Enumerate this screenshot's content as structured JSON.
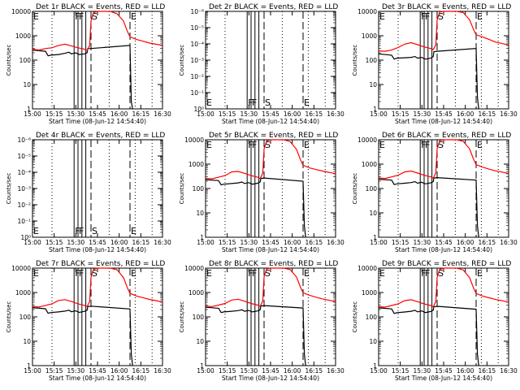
{
  "common": {
    "xlabel": "Start Time (08-Jun-12 14:54:40)",
    "ylabel": "Counts/sec",
    "x_ticks": [
      "15:00",
      "15:15",
      "15:30",
      "15:45",
      "16:00",
      "16:15",
      "16:30"
    ],
    "x_range_min": [
      0,
      100
    ],
    "events_color": "#000000",
    "lld_color": "#ff0000",
    "vertical_markers": [
      {
        "label": "E",
        "t": 0,
        "style": "dotted"
      },
      {
        "label": "",
        "t": 15,
        "style": "dotted"
      },
      {
        "label": "F",
        "t": 32,
        "style": "solid"
      },
      {
        "label": "F",
        "t": 35,
        "style": "solid"
      },
      {
        "label": "",
        "t": 38,
        "style": "solid"
      },
      {
        "label": "",
        "t": 41,
        "style": "solid"
      },
      {
        "label": "S",
        "t": 45,
        "style": "dashed"
      },
      {
        "label": "",
        "t": 59,
        "style": "dotted"
      },
      {
        "label": "E",
        "t": 75,
        "style": "dashed"
      },
      {
        "label": "",
        "t": 79,
        "style": "dotted"
      },
      {
        "label": "",
        "t": 92,
        "style": "dotted"
      }
    ]
  },
  "chart_data": [
    {
      "type": "line",
      "title": "Det 1r BLACK = Events, RED = LLD",
      "empty": false,
      "y_ticks": [
        "10000",
        "1000",
        "100",
        "10",
        "1"
      ],
      "ylim": [
        1,
        10000
      ],
      "series": [
        {
          "name": "Events",
          "x": [
            0,
            10,
            12,
            14,
            20,
            25,
            28,
            30,
            33,
            36,
            40,
            42,
            42.5,
            45,
            75,
            76,
            77
          ],
          "y": [
            260,
            230,
            150,
            160,
            170,
            190,
            210,
            180,
            200,
            170,
            180,
            200,
            300,
            300,
            400,
            2,
            1
          ]
        },
        {
          "name": "LLD",
          "x": [
            0,
            5,
            10,
            15,
            20,
            25,
            30,
            35,
            40,
            42,
            44,
            45,
            47,
            50,
            55,
            60,
            65,
            70,
            73,
            75,
            80,
            85,
            90,
            95,
            100
          ],
          "y": [
            280,
            260,
            300,
            320,
            400,
            450,
            380,
            320,
            280,
            250,
            400,
            4000,
            9000,
            10000,
            10000,
            10000,
            8000,
            4000,
            1500,
            900,
            700,
            600,
            500,
            450,
            400
          ]
        }
      ]
    },
    {
      "type": "line",
      "title": "Det 2r BLACK = Events, RED = LLD",
      "empty": true,
      "y_ticks": [
        "10⁻⁶",
        "10⁻⁵",
        "10⁻⁴",
        "10⁻³",
        "10⁻²",
        "10⁻¹",
        "10⁰"
      ],
      "series": []
    },
    {
      "type": "line",
      "title": "Det 3r BLACK = Events, RED = LLD",
      "empty": false,
      "y_ticks": [
        "10000",
        "1000",
        "100",
        "10",
        "1"
      ],
      "ylim": [
        1,
        10000
      ],
      "series": [
        {
          "name": "Events",
          "x": [
            0,
            10,
            12,
            14,
            20,
            25,
            28,
            30,
            33,
            36,
            40,
            42,
            42.5,
            45,
            75,
            76,
            77
          ],
          "y": [
            180,
            160,
            110,
            120,
            125,
            130,
            140,
            120,
            130,
            110,
            120,
            140,
            220,
            230,
            300,
            3,
            1
          ]
        },
        {
          "name": "LLD",
          "x": [
            0,
            5,
            10,
            15,
            20,
            25,
            30,
            35,
            40,
            42,
            44,
            45,
            47,
            50,
            55,
            60,
            65,
            70,
            73,
            75,
            80,
            85,
            90,
            95,
            100
          ],
          "y": [
            240,
            230,
            260,
            330,
            450,
            520,
            430,
            350,
            300,
            270,
            420,
            4500,
            9500,
            10000,
            10000,
            10000,
            9000,
            4500,
            1800,
            1100,
            900,
            700,
            550,
            480,
            420
          ]
        }
      ]
    },
    {
      "type": "line",
      "title": "Det 4r BLACK = Events, RED = LLD",
      "empty": true,
      "y_ticks": [
        "10⁻⁶",
        "10⁻⁵",
        "10⁻⁴",
        "10⁻³",
        "10⁻²",
        "10⁻¹",
        "10⁰"
      ],
      "series": []
    },
    {
      "type": "line",
      "title": "Det 5r BLACK = Events, RED = LLD",
      "empty": false,
      "y_ticks": [
        "10000",
        "1000",
        "100",
        "10",
        "1"
      ],
      "ylim": [
        1,
        10000
      ],
      "series": [
        {
          "name": "Events",
          "x": [
            0,
            10,
            12,
            14,
            20,
            25,
            28,
            30,
            33,
            36,
            40,
            42,
            42.5,
            45,
            75,
            76,
            77
          ],
          "y": [
            230,
            210,
            140,
            150,
            160,
            170,
            185,
            160,
            175,
            150,
            165,
            185,
            260,
            270,
            200,
            3,
            1
          ]
        },
        {
          "name": "LLD",
          "x": [
            0,
            5,
            10,
            15,
            20,
            25,
            30,
            35,
            40,
            42,
            44,
            45,
            47,
            50,
            55,
            60,
            65,
            70,
            73,
            75,
            80,
            85,
            90,
            95,
            100
          ],
          "y": [
            260,
            250,
            290,
            340,
            480,
            500,
            420,
            340,
            290,
            260,
            420,
            4200,
            9000,
            10000,
            10000,
            10000,
            8500,
            4000,
            1500,
            900,
            700,
            600,
            520,
            460,
            400
          ]
        }
      ]
    },
    {
      "type": "line",
      "title": "Det 6r BLACK = Events, RED = LLD",
      "empty": false,
      "y_ticks": [
        "10000",
        "1000",
        "100",
        "10",
        "1"
      ],
      "ylim": [
        1,
        10000
      ],
      "series": [
        {
          "name": "Events",
          "x": [
            0,
            10,
            12,
            14,
            20,
            25,
            28,
            30,
            33,
            36,
            40,
            42,
            42.5,
            45,
            75,
            76,
            77
          ],
          "y": [
            240,
            220,
            145,
            155,
            165,
            175,
            190,
            165,
            180,
            155,
            170,
            190,
            270,
            280,
            220,
            3,
            1
          ]
        },
        {
          "name": "LLD",
          "x": [
            0,
            5,
            10,
            15,
            20,
            25,
            30,
            35,
            40,
            42,
            44,
            45,
            47,
            50,
            55,
            60,
            65,
            70,
            73,
            75,
            80,
            85,
            90,
            95,
            100
          ],
          "y": [
            270,
            260,
            300,
            350,
            480,
            520,
            430,
            350,
            300,
            270,
            430,
            4300,
            9200,
            10000,
            10000,
            10000,
            8700,
            4200,
            1600,
            950,
            750,
            620,
            530,
            470,
            410
          ]
        }
      ]
    },
    {
      "type": "line",
      "title": "Det 7r BLACK = Events, RED = LLD",
      "empty": false,
      "y_ticks": [
        "10000",
        "1000",
        "100",
        "10",
        "1"
      ],
      "ylim": [
        1,
        10000
      ],
      "series": [
        {
          "name": "Events",
          "x": [
            0,
            10,
            12,
            14,
            20,
            25,
            28,
            30,
            33,
            36,
            40,
            42,
            42.5,
            45,
            75,
            76,
            77
          ],
          "y": [
            240,
            215,
            140,
            150,
            160,
            172,
            188,
            162,
            178,
            152,
            168,
            188,
            265,
            275,
            210,
            3,
            1
          ]
        },
        {
          "name": "LLD",
          "x": [
            0,
            5,
            10,
            15,
            20,
            25,
            30,
            35,
            40,
            42,
            44,
            45,
            47,
            50,
            55,
            60,
            65,
            70,
            73,
            75,
            80,
            85,
            90,
            95,
            100
          ],
          "y": [
            265,
            255,
            295,
            345,
            470,
            510,
            425,
            345,
            295,
            265,
            425,
            4250,
            9100,
            10000,
            10000,
            10000,
            8600,
            4100,
            1550,
            920,
            720,
            610,
            520,
            465,
            405
          ]
        }
      ]
    },
    {
      "type": "line",
      "title": "Det 8r BLACK = Events, RED = LLD",
      "empty": false,
      "y_ticks": [
        "10000",
        "1000",
        "100",
        "10",
        "1"
      ],
      "ylim": [
        1,
        10000
      ],
      "series": [
        {
          "name": "Events",
          "x": [
            0,
            10,
            12,
            14,
            20,
            25,
            28,
            30,
            33,
            36,
            40,
            42,
            42.5,
            45,
            75,
            76,
            77
          ],
          "y": [
            250,
            225,
            150,
            160,
            170,
            180,
            195,
            170,
            185,
            160,
            175,
            195,
            280,
            290,
            230,
            3,
            1
          ]
        },
        {
          "name": "LLD",
          "x": [
            0,
            5,
            10,
            15,
            20,
            25,
            30,
            35,
            40,
            42,
            44,
            45,
            47,
            50,
            55,
            60,
            65,
            70,
            73,
            75,
            80,
            85,
            90,
            95,
            100
          ],
          "y": [
            275,
            265,
            305,
            355,
            490,
            530,
            440,
            355,
            305,
            275,
            440,
            4400,
            9300,
            10000,
            10000,
            10000,
            8800,
            4300,
            1650,
            980,
            770,
            640,
            545,
            480,
            420
          ]
        }
      ]
    },
    {
      "type": "line",
      "title": "Det 9r BLACK = Events, RED = LLD",
      "empty": false,
      "y_ticks": [
        "10000",
        "1000",
        "100",
        "10",
        "1"
      ],
      "ylim": [
        1,
        10000
      ],
      "series": [
        {
          "name": "Events",
          "x": [
            0,
            10,
            12,
            14,
            20,
            25,
            28,
            30,
            33,
            36,
            40,
            42,
            42.5,
            45,
            75,
            76,
            77
          ],
          "y": [
            235,
            212,
            138,
            148,
            158,
            170,
            186,
            160,
            176,
            150,
            166,
            186,
            262,
            272,
            205,
            3,
            1
          ]
        },
        {
          "name": "LLD",
          "x": [
            0,
            5,
            10,
            15,
            20,
            25,
            30,
            35,
            40,
            42,
            44,
            45,
            47,
            50,
            55,
            60,
            65,
            70,
            73,
            75,
            80,
            85,
            90,
            95,
            100
          ],
          "y": [
            262,
            252,
            292,
            342,
            465,
            505,
            420,
            342,
            292,
            262,
            420,
            4200,
            9000,
            10000,
            10000,
            10000,
            8500,
            4050,
            1520,
            910,
            715,
            605,
            515,
            460,
            400
          ]
        }
      ]
    }
  ]
}
